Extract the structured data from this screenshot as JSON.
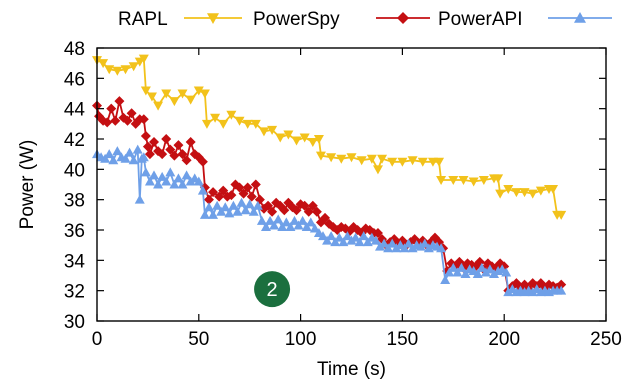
{
  "chart_data": {
    "type": "line",
    "xlabel": "Time (s)",
    "ylabel": "Power (W)",
    "xlim": [
      0,
      250
    ],
    "ylim": [
      30,
      48
    ],
    "xticks": [
      0,
      50,
      100,
      150,
      200,
      250
    ],
    "yticks": [
      30,
      32,
      34,
      36,
      38,
      40,
      42,
      44,
      46,
      48
    ],
    "grid": false,
    "legend_position": "top",
    "series": [
      {
        "name": "RAPL",
        "color": "#f2c21b",
        "marker": "triangle-down",
        "points": [
          [
            0,
            47.2
          ],
          [
            3,
            47.0
          ],
          [
            6,
            46.6
          ],
          [
            10,
            46.5
          ],
          [
            14,
            46.6
          ],
          [
            18,
            46.8
          ],
          [
            21,
            47.1
          ],
          [
            23,
            47.3
          ],
          [
            24,
            45.2
          ],
          [
            27,
            44.8
          ],
          [
            30,
            44.2
          ],
          [
            34,
            45.0
          ],
          [
            38,
            44.5
          ],
          [
            42,
            45.0
          ],
          [
            46,
            44.6
          ],
          [
            50,
            45.2
          ],
          [
            53,
            45.0
          ],
          [
            54,
            43.0
          ],
          [
            58,
            43.4
          ],
          [
            62,
            43.0
          ],
          [
            66,
            43.6
          ],
          [
            70,
            43.2
          ],
          [
            74,
            43.0
          ],
          [
            78,
            43.0
          ],
          [
            82,
            42.5
          ],
          [
            86,
            42.6
          ],
          [
            90,
            42.1
          ],
          [
            94,
            42.3
          ],
          [
            98,
            41.9
          ],
          [
            102,
            42.1
          ],
          [
            106,
            41.8
          ],
          [
            109,
            42.0
          ],
          [
            110,
            40.9
          ],
          [
            115,
            40.8
          ],
          [
            120,
            40.7
          ],
          [
            125,
            40.8
          ],
          [
            130,
            40.6
          ],
          [
            135,
            40.7
          ],
          [
            138,
            40.0
          ],
          [
            140,
            40.7
          ],
          [
            145,
            40.5
          ],
          [
            150,
            40.5
          ],
          [
            155,
            40.6
          ],
          [
            160,
            40.5
          ],
          [
            165,
            40.5
          ],
          [
            168,
            40.5
          ],
          [
            169,
            39.3
          ],
          [
            175,
            39.3
          ],
          [
            180,
            39.3
          ],
          [
            185,
            39.2
          ],
          [
            190,
            39.3
          ],
          [
            195,
            39.4
          ],
          [
            197,
            39.4
          ],
          [
            198,
            38.4
          ],
          [
            202,
            38.7
          ],
          [
            206,
            38.5
          ],
          [
            210,
            38.5
          ],
          [
            214,
            38.4
          ],
          [
            218,
            38.6
          ],
          [
            222,
            38.7
          ],
          [
            224,
            38.7
          ],
          [
            226,
            37.0
          ],
          [
            228,
            37.0
          ]
        ]
      },
      {
        "name": "PowerSpy",
        "color": "#c40f12",
        "marker": "diamond",
        "points": [
          [
            0,
            44.2
          ],
          [
            1,
            43.5
          ],
          [
            3,
            43.2
          ],
          [
            5,
            43.1
          ],
          [
            7,
            44.0
          ],
          [
            9,
            43.2
          ],
          [
            11,
            44.5
          ],
          [
            13,
            43.4
          ],
          [
            15,
            43.2
          ],
          [
            17,
            43.7
          ],
          [
            19,
            43.0
          ],
          [
            21,
            43.3
          ],
          [
            23,
            43.3
          ],
          [
            24,
            42.2
          ],
          [
            25,
            41.5
          ],
          [
            26,
            41.0
          ],
          [
            28,
            41.8
          ],
          [
            30,
            41.2
          ],
          [
            32,
            41.0
          ],
          [
            34,
            42.0
          ],
          [
            36,
            41.3
          ],
          [
            38,
            40.9
          ],
          [
            40,
            41.6
          ],
          [
            42,
            41.0
          ],
          [
            44,
            40.6
          ],
          [
            46,
            41.8
          ],
          [
            48,
            41.0
          ],
          [
            50,
            40.8
          ],
          [
            52,
            40.5
          ],
          [
            53,
            38.8
          ],
          [
            55,
            38.0
          ],
          [
            57,
            38.5
          ],
          [
            60,
            38.2
          ],
          [
            62,
            38.6
          ],
          [
            64,
            38.2
          ],
          [
            66,
            38.3
          ],
          [
            68,
            39.0
          ],
          [
            70,
            38.8
          ],
          [
            72,
            38.4
          ],
          [
            74,
            38.8
          ],
          [
            76,
            38.2
          ],
          [
            78,
            39.0
          ],
          [
            80,
            38.0
          ],
          [
            82,
            37.4
          ],
          [
            84,
            37.6
          ],
          [
            86,
            37.2
          ],
          [
            88,
            37.8
          ],
          [
            90,
            37.6
          ],
          [
            92,
            37.3
          ],
          [
            94,
            37.8
          ],
          [
            96,
            37.5
          ],
          [
            98,
            37.3
          ],
          [
            100,
            37.7
          ],
          [
            102,
            37.6
          ],
          [
            104,
            37.2
          ],
          [
            106,
            37.6
          ],
          [
            108,
            37.2
          ],
          [
            110,
            36.5
          ],
          [
            112,
            36.8
          ],
          [
            114,
            36.4
          ],
          [
            116,
            36.2
          ],
          [
            118,
            36.0
          ],
          [
            120,
            36.2
          ],
          [
            122,
            36.1
          ],
          [
            124,
            35.9
          ],
          [
            126,
            36.2
          ],
          [
            128,
            36.0
          ],
          [
            130,
            35.8
          ],
          [
            132,
            36.1
          ],
          [
            134,
            36.0
          ],
          [
            136,
            35.8
          ],
          [
            138,
            35.8
          ],
          [
            140,
            35.4
          ],
          [
            142,
            35.0
          ],
          [
            144,
            35.2
          ],
          [
            146,
            35.4
          ],
          [
            148,
            35.1
          ],
          [
            150,
            35.3
          ],
          [
            152,
            35.0
          ],
          [
            154,
            35.2
          ],
          [
            156,
            35.4
          ],
          [
            158,
            35.1
          ],
          [
            160,
            35.3
          ],
          [
            162,
            35.0
          ],
          [
            164,
            35.2
          ],
          [
            166,
            35.5
          ],
          [
            168,
            35.2
          ],
          [
            170,
            34.8
          ],
          [
            172,
            33.3
          ],
          [
            174,
            33.8
          ],
          [
            176,
            33.6
          ],
          [
            178,
            33.9
          ],
          [
            180,
            33.5
          ],
          [
            182,
            33.8
          ],
          [
            184,
            33.7
          ],
          [
            186,
            33.6
          ],
          [
            188,
            33.9
          ],
          [
            190,
            33.4
          ],
          [
            192,
            33.8
          ],
          [
            194,
            33.6
          ],
          [
            196,
            33.5
          ],
          [
            198,
            33.8
          ],
          [
            200,
            33.6
          ],
          [
            202,
            32.0
          ],
          [
            204,
            32.3
          ],
          [
            206,
            32.5
          ],
          [
            208,
            32.2
          ],
          [
            210,
            32.4
          ],
          [
            212,
            32.1
          ],
          [
            214,
            32.5
          ],
          [
            216,
            32.3
          ],
          [
            218,
            32.5
          ],
          [
            220,
            32.2
          ],
          [
            222,
            32.4
          ],
          [
            224,
            32.3
          ],
          [
            226,
            32.2
          ],
          [
            228,
            32.4
          ]
        ]
      },
      {
        "name": "PowerAPI",
        "color": "#6fa0e8",
        "marker": "triangle-up",
        "points": [
          [
            0,
            41.0
          ],
          [
            2,
            40.8
          ],
          [
            4,
            40.7
          ],
          [
            6,
            41.0
          ],
          [
            8,
            40.6
          ],
          [
            10,
            41.2
          ],
          [
            12,
            40.8
          ],
          [
            14,
            40.7
          ],
          [
            16,
            41.1
          ],
          [
            18,
            40.6
          ],
          [
            20,
            41.3
          ],
          [
            21,
            38.0
          ],
          [
            22,
            40.7
          ],
          [
            23,
            40.8
          ],
          [
            24,
            39.8
          ],
          [
            26,
            39.2
          ],
          [
            28,
            39.6
          ],
          [
            30,
            39.0
          ],
          [
            32,
            39.5
          ],
          [
            34,
            39.2
          ],
          [
            36,
            39.8
          ],
          [
            38,
            39.0
          ],
          [
            40,
            39.4
          ],
          [
            42,
            39.0
          ],
          [
            44,
            39.6
          ],
          [
            46,
            39.2
          ],
          [
            48,
            39.4
          ],
          [
            50,
            39.2
          ],
          [
            52,
            38.6
          ],
          [
            53,
            37.0
          ],
          [
            55,
            37.5
          ],
          [
            57,
            37.0
          ],
          [
            59,
            37.6
          ],
          [
            61,
            37.2
          ],
          [
            63,
            37.5
          ],
          [
            65,
            37.1
          ],
          [
            67,
            37.6
          ],
          [
            69,
            37.2
          ],
          [
            71,
            37.8
          ],
          [
            73,
            37.3
          ],
          [
            75,
            37.7
          ],
          [
            77,
            37.2
          ],
          [
            79,
            37.6
          ],
          [
            81,
            36.6
          ],
          [
            83,
            36.2
          ],
          [
            85,
            36.6
          ],
          [
            87,
            36.3
          ],
          [
            89,
            36.7
          ],
          [
            91,
            36.2
          ],
          [
            93,
            36.5
          ],
          [
            95,
            36.2
          ],
          [
            97,
            36.6
          ],
          [
            99,
            36.3
          ],
          [
            101,
            36.6
          ],
          [
            103,
            36.2
          ],
          [
            105,
            36.5
          ],
          [
            107,
            36.1
          ],
          [
            109,
            35.8
          ],
          [
            111,
            35.6
          ],
          [
            113,
            35.3
          ],
          [
            115,
            35.6
          ],
          [
            117,
            35.2
          ],
          [
            119,
            35.5
          ],
          [
            121,
            35.2
          ],
          [
            123,
            35.6
          ],
          [
            125,
            35.3
          ],
          [
            127,
            35.5
          ],
          [
            129,
            35.2
          ],
          [
            131,
            35.6
          ],
          [
            133,
            35.2
          ],
          [
            135,
            35.5
          ],
          [
            137,
            35.3
          ],
          [
            139,
            34.9
          ],
          [
            141,
            35.1
          ],
          [
            143,
            34.8
          ],
          [
            145,
            35.1
          ],
          [
            147,
            34.8
          ],
          [
            149,
            35.0
          ],
          [
            151,
            34.8
          ],
          [
            153,
            35.1
          ],
          [
            155,
            34.8
          ],
          [
            157,
            35.0
          ],
          [
            159,
            34.9
          ],
          [
            161,
            35.1
          ],
          [
            163,
            34.8
          ],
          [
            165,
            35.0
          ],
          [
            167,
            34.9
          ],
          [
            169,
            34.8
          ],
          [
            171,
            32.7
          ],
          [
            173,
            33.2
          ],
          [
            175,
            33.5
          ],
          [
            177,
            33.2
          ],
          [
            179,
            33.5
          ],
          [
            181,
            33.1
          ],
          [
            183,
            33.4
          ],
          [
            185,
            33.3
          ],
          [
            187,
            33.1
          ],
          [
            189,
            33.5
          ],
          [
            191,
            33.2
          ],
          [
            193,
            33.4
          ],
          [
            195,
            33.1
          ],
          [
            197,
            33.3
          ],
          [
            199,
            33.4
          ],
          [
            201,
            33.2
          ],
          [
            202,
            31.9
          ],
          [
            204,
            32.1
          ],
          [
            206,
            31.9
          ],
          [
            208,
            32.0
          ],
          [
            210,
            31.9
          ],
          [
            212,
            32.0
          ],
          [
            214,
            31.9
          ],
          [
            216,
            32.1
          ],
          [
            218,
            31.9
          ],
          [
            220,
            32.0
          ],
          [
            222,
            31.9
          ],
          [
            224,
            32.0
          ],
          [
            226,
            32.0
          ],
          [
            228,
            32.0
          ]
        ]
      }
    ],
    "annotation": {
      "text": "2",
      "x": 86,
      "y": 32.1,
      "color": "#1b6f3e"
    }
  }
}
